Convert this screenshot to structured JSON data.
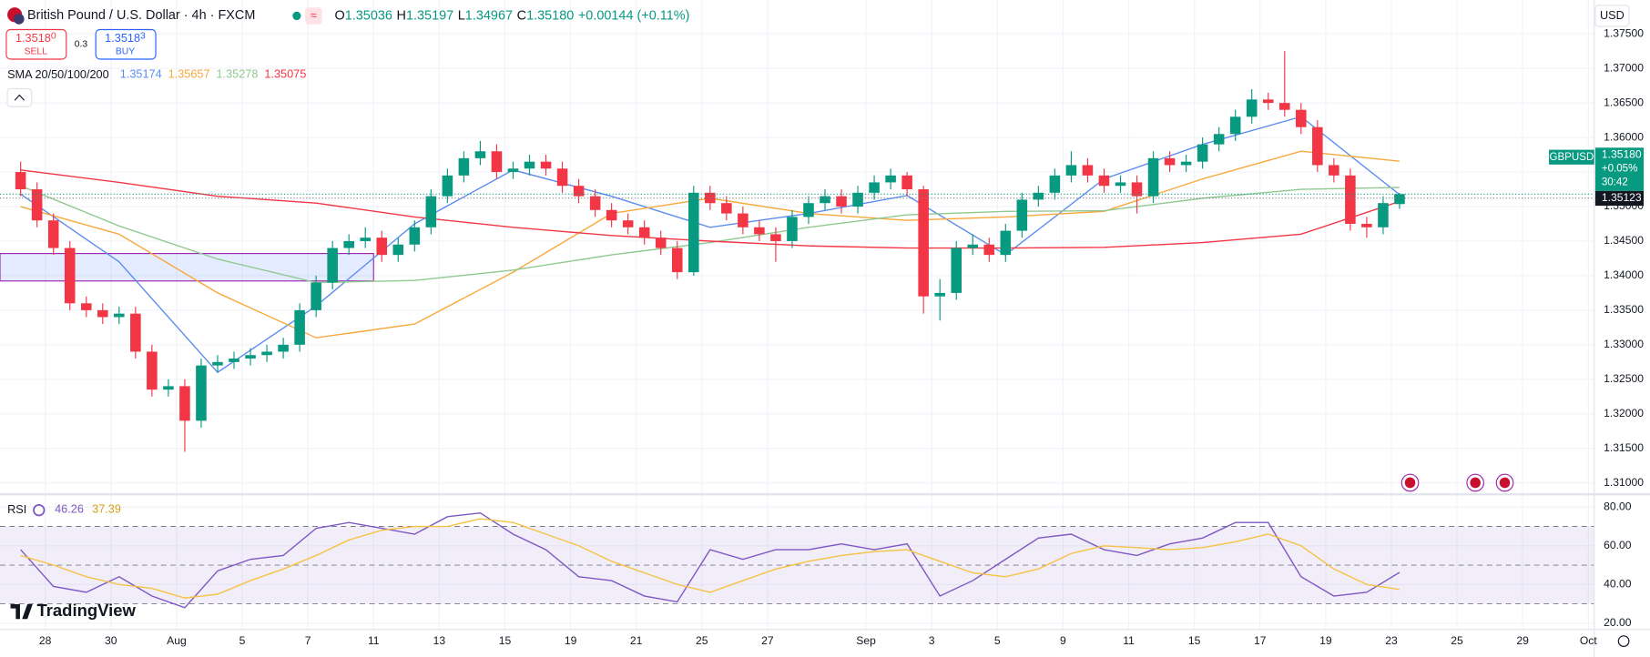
{
  "header": {
    "symbol": "British Pound / U.S. Dollar · 4h · FXCM",
    "o_label": "O",
    "o": "1.35036",
    "h_label": "H",
    "h": "1.35197",
    "l_label": "L",
    "l": "1.34967",
    "c_label": "C",
    "c": "1.35180",
    "change": "+0.00144 (+0.11%)",
    "currency": "USD"
  },
  "trade": {
    "sell_price": "1.3518",
    "sell_sup": "0",
    "sell": "SELL",
    "spread": "0.3",
    "buy_price": "1.3518",
    "buy_sup": "3",
    "buy": "BUY"
  },
  "branding": "TradingView",
  "chart_data": [
    {
      "type": "candlestick",
      "indicator_title": "SMA 20/50/100/200",
      "symbol_tag": "GBPUSD",
      "last_price": {
        "value": 1.3518,
        "label": "1.35180"
      },
      "last_change": "+0.05%",
      "countdown": "30:42",
      "ref_price": {
        "value": 1.35123,
        "label": "1.35123"
      },
      "up_color": "#089981",
      "down_color": "#f23645",
      "grid": true,
      "ylim": [
        1.3085,
        1.3799
      ],
      "yticks": [
        {
          "value": 1.31,
          "label": "1.31000"
        },
        {
          "value": 1.315,
          "label": "1.31500"
        },
        {
          "value": 1.32,
          "label": "1.32000"
        },
        {
          "value": 1.325,
          "label": "1.32500"
        },
        {
          "value": 1.33,
          "label": "1.33000"
        },
        {
          "value": 1.335,
          "label": "1.33500"
        },
        {
          "value": 1.34,
          "label": "1.34000"
        },
        {
          "value": 1.345,
          "label": "1.34500"
        },
        {
          "value": 1.35,
          "label": "1.35000"
        },
        {
          "value": 1.355,
          "label": "1.35500"
        },
        {
          "value": 1.36,
          "label": "1.36000"
        },
        {
          "value": 1.365,
          "label": "1.36500"
        },
        {
          "value": 1.37,
          "label": "1.37000"
        },
        {
          "value": 1.375,
          "label": "1.37500"
        }
      ],
      "categories": [
        null,
        null,
        "28",
        null,
        null,
        null,
        "30",
        null,
        null,
        null,
        "Aug",
        null,
        null,
        null,
        "5",
        null,
        null,
        null,
        "7",
        null,
        null,
        null,
        "11",
        null,
        null,
        null,
        "13",
        null,
        null,
        null,
        "15",
        null,
        null,
        null,
        "19",
        null,
        null,
        null,
        "21",
        null,
        null,
        null,
        "25",
        null,
        null,
        null,
        "27",
        null,
        null,
        null,
        null,
        null,
        "Sep",
        null,
        null,
        null,
        "3",
        null,
        null,
        null,
        "5",
        null,
        null,
        null,
        "9",
        null,
        null,
        null,
        "11",
        null,
        null,
        null,
        "15",
        null,
        null,
        null,
        "17",
        null,
        null,
        null,
        "19",
        null,
        null,
        null,
        "23",
        null,
        null,
        null,
        "25",
        null,
        null,
        null,
        "29",
        null,
        null,
        null,
        "Oct",
        null
      ],
      "candles": [
        [
          1.355,
          1.3565,
          1.3515,
          1.3525
        ],
        [
          1.3525,
          1.3535,
          1.347,
          1.348
        ],
        [
          1.348,
          1.349,
          1.343,
          1.344
        ],
        [
          1.344,
          1.345,
          1.335,
          1.336
        ],
        [
          1.336,
          1.337,
          1.334,
          1.335
        ],
        [
          1.335,
          1.336,
          1.333,
          1.334
        ],
        [
          1.334,
          1.3355,
          1.333,
          1.3345
        ],
        [
          1.3345,
          1.3355,
          1.328,
          1.329
        ],
        [
          1.329,
          1.33,
          1.3225,
          1.3235
        ],
        [
          1.3235,
          1.325,
          1.3225,
          1.324
        ],
        [
          1.324,
          1.325,
          1.3145,
          1.319
        ],
        [
          1.319,
          1.328,
          1.318,
          1.327
        ],
        [
          1.327,
          1.3285,
          1.326,
          1.3275
        ],
        [
          1.3275,
          1.329,
          1.3265,
          1.328
        ],
        [
          1.328,
          1.3295,
          1.327,
          1.3285
        ],
        [
          1.3285,
          1.33,
          1.3275,
          1.329
        ],
        [
          1.329,
          1.331,
          1.328,
          1.33
        ],
        [
          1.33,
          1.336,
          1.329,
          1.335
        ],
        [
          1.335,
          1.34,
          1.334,
          1.339
        ],
        [
          1.339,
          1.345,
          1.338,
          1.344
        ],
        [
          1.344,
          1.346,
          1.343,
          1.345
        ],
        [
          1.345,
          1.347,
          1.344,
          1.3455
        ],
        [
          1.3455,
          1.3465,
          1.342,
          1.343
        ],
        [
          1.343,
          1.3455,
          1.342,
          1.3445
        ],
        [
          1.3445,
          1.348,
          1.3435,
          1.347
        ],
        [
          1.347,
          1.3525,
          1.346,
          1.3515
        ],
        [
          1.3515,
          1.3555,
          1.3505,
          1.3545
        ],
        [
          1.3545,
          1.358,
          1.3535,
          1.357
        ],
        [
          1.357,
          1.3595,
          1.356,
          1.358
        ],
        [
          1.358,
          1.359,
          1.354,
          1.355
        ],
        [
          1.355,
          1.3565,
          1.354,
          1.3555
        ],
        [
          1.3555,
          1.3575,
          1.3545,
          1.3565
        ],
        [
          1.3565,
          1.3575,
          1.3545,
          1.3555
        ],
        [
          1.3555,
          1.3565,
          1.352,
          1.353
        ],
        [
          1.353,
          1.354,
          1.3505,
          1.3515
        ],
        [
          1.3515,
          1.3525,
          1.3485,
          1.3495
        ],
        [
          1.3495,
          1.3505,
          1.347,
          1.348
        ],
        [
          1.348,
          1.349,
          1.346,
          1.347
        ],
        [
          1.347,
          1.348,
          1.3445,
          1.3455
        ],
        [
          1.3455,
          1.3465,
          1.343,
          1.344
        ],
        [
          1.344,
          1.345,
          1.3395,
          1.3405
        ],
        [
          1.3405,
          1.353,
          1.34,
          1.352
        ],
        [
          1.352,
          1.353,
          1.3495,
          1.3505
        ],
        [
          1.3505,
          1.3515,
          1.348,
          1.349
        ],
        [
          1.349,
          1.35,
          1.346,
          1.347
        ],
        [
          1.347,
          1.348,
          1.345,
          1.346
        ],
        [
          1.346,
          1.347,
          1.342,
          1.345
        ],
        [
          1.345,
          1.3495,
          1.344,
          1.3485
        ],
        [
          1.3485,
          1.3515,
          1.3475,
          1.3505
        ],
        [
          1.3505,
          1.3525,
          1.3495,
          1.3515
        ],
        [
          1.3515,
          1.3525,
          1.349,
          1.35
        ],
        [
          1.35,
          1.353,
          1.349,
          1.352
        ],
        [
          1.352,
          1.3545,
          1.351,
          1.3535
        ],
        [
          1.3535,
          1.3555,
          1.3525,
          1.3545
        ],
        [
          1.3545,
          1.355,
          1.3515,
          1.3525
        ],
        [
          1.3525,
          1.353,
          1.3345,
          1.337
        ],
        [
          1.337,
          1.3395,
          1.3335,
          1.3375
        ],
        [
          1.3375,
          1.345,
          1.3365,
          1.344
        ],
        [
          1.344,
          1.346,
          1.343,
          1.3445
        ],
        [
          1.3445,
          1.3455,
          1.342,
          1.343
        ],
        [
          1.343,
          1.3475,
          1.342,
          1.3465
        ],
        [
          1.3465,
          1.352,
          1.3455,
          1.351
        ],
        [
          1.351,
          1.353,
          1.35,
          1.352
        ],
        [
          1.352,
          1.3555,
          1.351,
          1.3545
        ],
        [
          1.3545,
          1.358,
          1.3535,
          1.356
        ],
        [
          1.356,
          1.357,
          1.3535,
          1.3545
        ],
        [
          1.3545,
          1.3555,
          1.352,
          1.353
        ],
        [
          1.353,
          1.3545,
          1.352,
          1.3535
        ],
        [
          1.3535,
          1.3545,
          1.349,
          1.3515
        ],
        [
          1.3515,
          1.358,
          1.3505,
          1.357
        ],
        [
          1.357,
          1.358,
          1.355,
          1.356
        ],
        [
          1.356,
          1.3575,
          1.355,
          1.3565
        ],
        [
          1.3565,
          1.36,
          1.3555,
          1.359
        ],
        [
          1.359,
          1.3615,
          1.358,
          1.3605
        ],
        [
          1.3605,
          1.364,
          1.3595,
          1.363
        ],
        [
          1.363,
          1.367,
          1.362,
          1.3655
        ],
        [
          1.3655,
          1.3665,
          1.364,
          1.365
        ],
        [
          1.365,
          1.3725,
          1.363,
          1.364
        ],
        [
          1.364,
          1.365,
          1.3605,
          1.3615
        ],
        [
          1.3615,
          1.3625,
          1.355,
          1.356
        ],
        [
          1.356,
          1.357,
          1.3535,
          1.3545
        ],
        [
          1.3545,
          1.3555,
          1.3465,
          1.3475
        ],
        [
          1.3475,
          1.3485,
          1.3455,
          1.347
        ],
        [
          1.347,
          1.3515,
          1.346,
          1.3505
        ],
        [
          1.35036,
          1.35197,
          1.34967,
          1.3518
        ],
        null,
        null,
        null,
        null,
        null,
        null,
        null,
        null,
        null,
        null,
        null,
        null,
        null
      ],
      "series": [
        {
          "color": "#5b8def",
          "x": [
            0,
            6,
            12,
            18,
            24,
            30,
            36,
            42,
            48,
            54,
            60,
            66,
            72,
            78,
            84
          ],
          "values": [
            1.3518,
            1.342,
            1.326,
            1.3356,
            1.3475,
            1.3553,
            1.3515,
            1.347,
            1.349,
            1.3516,
            1.343,
            1.354,
            1.359,
            1.363,
            1.35174
          ]
        },
        {
          "color": "#f7a83b",
          "x": [
            0,
            6,
            12,
            18,
            24,
            30,
            36,
            42,
            48,
            54,
            60,
            66,
            72,
            78,
            84
          ],
          "values": [
            1.35,
            1.346,
            1.3375,
            1.331,
            1.333,
            1.3405,
            1.349,
            1.3512,
            1.349,
            1.348,
            1.3485,
            1.3493,
            1.354,
            1.358,
            1.35657
          ]
        },
        {
          "color": "#8fc98f",
          "x": [
            0,
            6,
            12,
            18,
            24,
            30,
            36,
            42,
            48,
            54,
            60,
            66,
            72,
            78,
            84
          ],
          "values": [
            1.353,
            1.3472,
            1.3424,
            1.339,
            1.3393,
            1.3408,
            1.343,
            1.3448,
            1.347,
            1.3488,
            1.3493,
            1.3494,
            1.3512,
            1.3525,
            1.35278
          ]
        },
        {
          "color": "#f23645",
          "x": [
            0,
            6,
            12,
            18,
            24,
            30,
            36,
            42,
            48,
            54,
            60,
            66,
            72,
            78,
            84
          ],
          "values": [
            1.3553,
            1.3535,
            1.3515,
            1.3505,
            1.3485,
            1.347,
            1.3458,
            1.345,
            1.3443,
            1.344,
            1.344,
            1.3441,
            1.3448,
            1.346,
            1.35075
          ]
        }
      ]
    },
    {
      "type": "line",
      "title": "RSI",
      "ylim": [
        16.7,
        85.5
      ],
      "yticks": [
        {
          "value": 20,
          "label": "20.00"
        },
        {
          "value": 40,
          "label": "40.00"
        },
        {
          "value": 60,
          "label": "60.00"
        },
        {
          "value": 80,
          "label": "80.00"
        }
      ],
      "levels": [
        30,
        50,
        70
      ],
      "band_color": "#7e57c2",
      "series": [
        {
          "color": "#7e57c2",
          "x": [
            0,
            2,
            4,
            6,
            8,
            10,
            12,
            14,
            16,
            18,
            20,
            22,
            24,
            26,
            28,
            30,
            32,
            34,
            36,
            38,
            40,
            42,
            44,
            46,
            48,
            50,
            52,
            54,
            56,
            58,
            60,
            62,
            64,
            66,
            68,
            70,
            72,
            74,
            76,
            78,
            80,
            82,
            84
          ],
          "values": [
            58,
            39,
            36,
            44,
            34,
            28,
            47,
            53,
            55,
            69,
            72,
            69,
            66,
            75,
            77,
            66,
            58,
            44,
            42,
            34,
            31,
            58,
            53,
            58,
            58,
            61,
            58,
            61,
            34,
            42,
            53,
            64,
            66,
            58,
            55,
            61,
            64,
            72,
            72,
            44,
            34,
            36,
            46.26
          ]
        },
        {
          "color": "#f5c242",
          "x": [
            0,
            2,
            4,
            6,
            8,
            10,
            12,
            14,
            16,
            18,
            20,
            22,
            24,
            26,
            28,
            30,
            32,
            34,
            36,
            38,
            40,
            42,
            44,
            46,
            48,
            50,
            52,
            54,
            56,
            58,
            60,
            62,
            64,
            66,
            68,
            70,
            72,
            74,
            76,
            78,
            80,
            82,
            84
          ],
          "values": [
            55,
            50,
            44,
            40,
            38,
            33,
            35,
            42,
            48,
            55,
            63,
            68,
            70,
            70,
            74,
            72,
            66,
            60,
            52,
            46,
            40,
            36,
            42,
            48,
            52,
            55,
            57,
            58,
            52,
            46,
            44,
            48,
            56,
            60,
            59,
            58,
            59,
            62,
            66,
            60,
            48,
            40,
            37.39
          ]
        }
      ]
    }
  ]
}
